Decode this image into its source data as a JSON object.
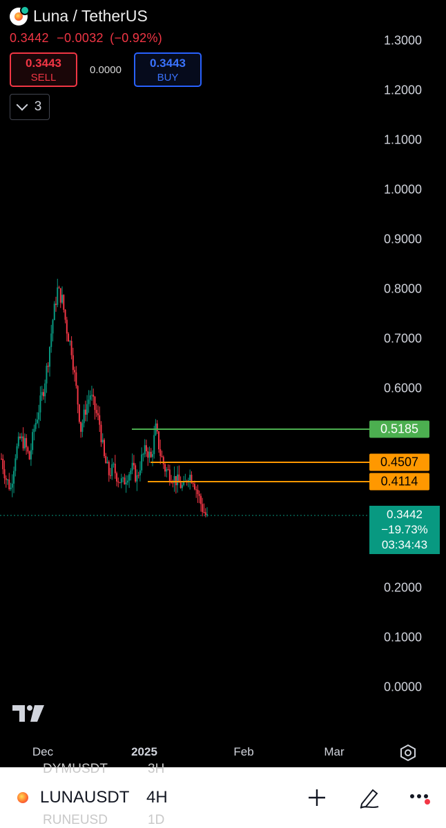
{
  "header": {
    "title": "Luna / TetherUS",
    "price": "0.3442",
    "change": "−0.0032",
    "change_pct": "(−0.92%)",
    "sell": {
      "value": "0.3443",
      "label": "SELL"
    },
    "spread": "0.0000",
    "buy": {
      "value": "0.3443",
      "label": "BUY"
    },
    "indicator_count": "3"
  },
  "price_axis": [
    "1.3000",
    "1.2000",
    "1.1000",
    "1.0000",
    "0.9000",
    "0.8000",
    "0.7000",
    "0.6000",
    "0.2000",
    "0.1000",
    "0.0000"
  ],
  "price_tags": {
    "line1": "0.5185",
    "line2": "0.4507",
    "line3": "0.4114",
    "last_price": "0.3442",
    "last_change": "−19.73%",
    "countdown": "03:34:43"
  },
  "time_axis": [
    "Dec",
    "2025",
    "Feb",
    "Mar"
  ],
  "colors": {
    "up": "#089981",
    "down": "#f23645",
    "line_green": "#4caf50",
    "line_orange": "#ff9800"
  },
  "bottom_bar": {
    "ghost_prev_symbol": "DYMUSDT",
    "ghost_prev_tf": "3H",
    "symbol": "LUNAUSDT",
    "timeframe": "4H",
    "ghost_next_symbol": "RUNEUSD",
    "ghost_next_tf": "1D",
    "icons": [
      "plus-icon",
      "draw-icon",
      "more-icon"
    ]
  },
  "chart_data": {
    "type": "candlestick",
    "ylim": [
      0,
      1.3
    ],
    "x": [
      "Dec",
      "2025",
      "Feb",
      "Mar"
    ],
    "close_series": [
      0.46,
      0.42,
      0.4,
      0.47,
      0.5,
      0.49,
      0.46,
      0.52,
      0.56,
      0.6,
      0.66,
      0.74,
      0.8,
      0.78,
      0.72,
      0.68,
      0.6,
      0.52,
      0.56,
      0.59,
      0.56,
      0.53,
      0.46,
      0.43,
      0.44,
      0.42,
      0.41,
      0.43,
      0.44,
      0.42,
      0.46,
      0.48,
      0.46,
      0.52,
      0.47,
      0.44,
      0.43,
      0.42,
      0.41,
      0.4,
      0.43,
      0.42,
      0.39,
      0.36,
      0.34
    ],
    "horizontal_lines": [
      0.5185,
      0.4507,
      0.4114
    ],
    "last_price": 0.3442
  }
}
